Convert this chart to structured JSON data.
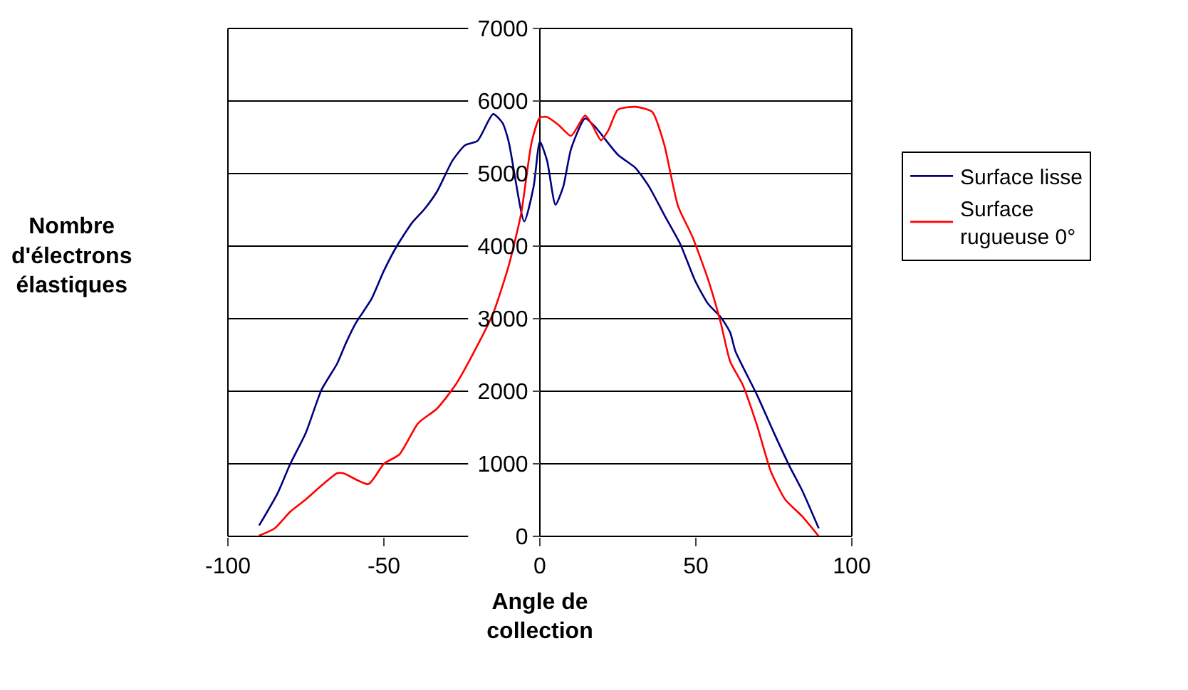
{
  "chart_data": {
    "type": "line",
    "xlabel": "Angle de collection",
    "ylabel": "Nombre d'électrons élastiques",
    "xlim": [
      -100,
      100
    ],
    "xticks": [
      -100,
      -50,
      0,
      50,
      100
    ],
    "ylim": [
      0,
      7000
    ],
    "yticks": [
      0,
      1000,
      2000,
      3000,
      4000,
      5000,
      6000,
      7000
    ],
    "grid": "y",
    "legend": "right",
    "marker": "none",
    "line_style": "solid",
    "series": [
      {
        "name": "Surface lisse",
        "color": "#000080",
        "x": [
          -90,
          -84,
          -80,
          -75,
          -70,
          -65,
          -62,
          -59,
          -54,
          -50,
          -46,
          -41,
          -37,
          -33,
          -28,
          -24,
          -20,
          -15,
          -12,
          -10,
          -5,
          -2,
          0,
          2.3,
          5,
          7.5,
          10,
          14.5,
          17.6,
          25,
          30.6,
          35,
          40,
          45,
          49.7,
          54,
          58,
          61,
          62.7,
          69.6,
          75,
          80,
          84,
          89.4
        ],
        "values": [
          150,
          600,
          1000,
          1430,
          2020,
          2380,
          2680,
          2940,
          3270,
          3660,
          3990,
          4320,
          4510,
          4750,
          5180,
          5390,
          5450,
          5820,
          5700,
          5440,
          4340,
          4820,
          5440,
          5180,
          4570,
          4820,
          5340,
          5760,
          5650,
          5260,
          5080,
          4820,
          4420,
          4030,
          3530,
          3200,
          3020,
          2810,
          2550,
          1950,
          1430,
          970,
          640,
          110
        ]
      },
      {
        "name": "Surface rugueuse 0°",
        "color": "#ff0000",
        "x": [
          -90,
          -85,
          -80,
          -75,
          -70,
          -65,
          -63,
          -55,
          -50,
          -45,
          -39,
          -33,
          -27,
          -21,
          -15,
          -10,
          -6,
          -2.6,
          0,
          2.3,
          6,
          10,
          14.5,
          16.8,
          19.6,
          22,
          25,
          30.6,
          36,
          39.8,
          44.3,
          48.9,
          54,
          58,
          61,
          65,
          69.6,
          74,
          78.6,
          84,
          89.4
        ],
        "values": [
          10,
          110,
          340,
          510,
          700,
          870,
          870,
          720,
          1000,
          1130,
          1560,
          1760,
          2090,
          2550,
          3070,
          3730,
          4450,
          5440,
          5770,
          5780,
          5670,
          5520,
          5800,
          5670,
          5460,
          5600,
          5880,
          5920,
          5850,
          5410,
          4550,
          4130,
          3530,
          2940,
          2410,
          2090,
          1530,
          900,
          510,
          280,
          0
        ]
      }
    ]
  }
}
